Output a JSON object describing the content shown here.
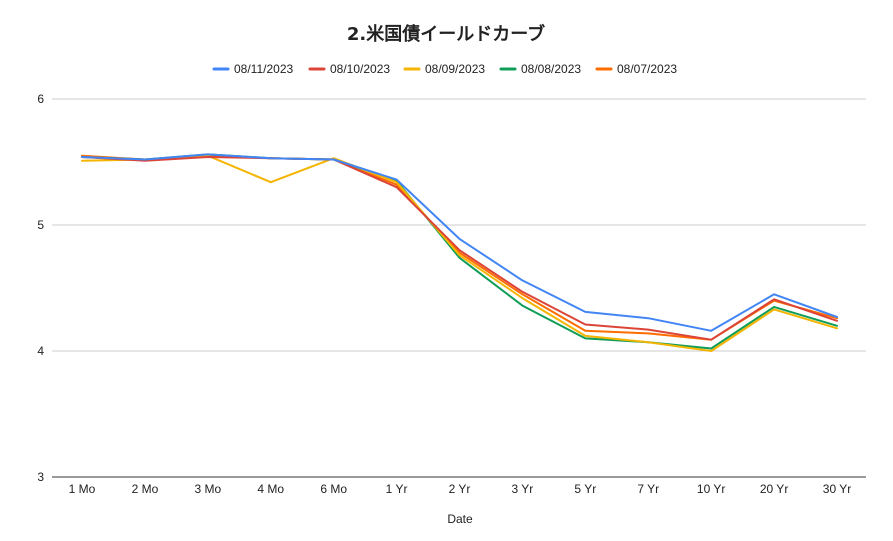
{
  "chart_data": {
    "type": "line",
    "title": "2.米国債イールドカーブ",
    "xlabel": "Date",
    "ylabel": "",
    "ylim": [
      3,
      6
    ],
    "yticks": [
      3,
      4,
      5,
      6
    ],
    "legend_position": "top",
    "grid": true,
    "categories": [
      "1 Mo",
      "2 Mo",
      "3 Mo",
      "4 Mo",
      "6 Mo",
      "1 Yr",
      "2 Yr",
      "3 Yr",
      "5 Yr",
      "7 Yr",
      "10 Yr",
      "20 Yr",
      "30 Yr"
    ],
    "series": [
      {
        "name": "08/11/2023",
        "color": "#4285f4",
        "values": [
          5.54,
          5.52,
          5.56,
          5.53,
          5.52,
          5.36,
          4.89,
          4.56,
          4.31,
          4.26,
          4.16,
          4.45,
          4.27
        ]
      },
      {
        "name": "08/10/2023",
        "color": "#db4437",
        "values": [
          5.54,
          5.51,
          5.54,
          5.53,
          5.52,
          5.3,
          4.8,
          4.47,
          4.21,
          4.17,
          4.09,
          4.41,
          4.24
        ]
      },
      {
        "name": "08/09/2023",
        "color": "#f4b400",
        "values": [
          5.51,
          5.52,
          5.55,
          5.34,
          5.53,
          5.34,
          4.76,
          4.42,
          4.12,
          4.07,
          4.0,
          4.33,
          4.18
        ]
      },
      {
        "name": "08/08/2023",
        "color": "#0f9d58",
        "values": [
          5.54,
          5.52,
          5.56,
          5.53,
          5.52,
          5.35,
          4.74,
          4.36,
          4.1,
          4.07,
          4.02,
          4.35,
          4.2
        ]
      },
      {
        "name": "08/07/2023",
        "color": "#ff6d00",
        "values": [
          5.55,
          5.52,
          5.55,
          5.53,
          5.52,
          5.32,
          4.78,
          4.45,
          4.16,
          4.14,
          4.09,
          4.4,
          4.26
        ]
      }
    ]
  }
}
